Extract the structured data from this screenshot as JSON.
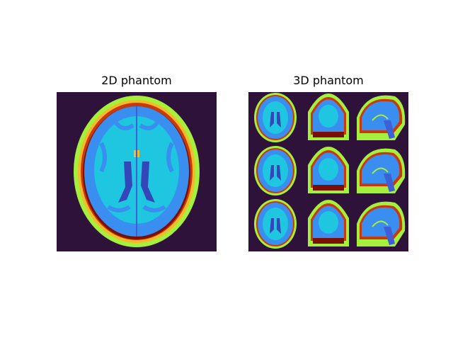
{
  "figure": {
    "panels": [
      {
        "title": "2D phantom",
        "content": "axial MRI brain phantom slice"
      },
      {
        "title": "3D phantom",
        "content": "3x3 grid of axial, coronal and sagittal slices"
      }
    ],
    "colors": {
      "background": "#2f123a",
      "scalp": "#a4f03c",
      "skull": "#f5b92a",
      "marrow": "#c83a0c",
      "dark_red": "#7a0f05",
      "csf": "#1ec6e0",
      "gray_matter": "#3a8ef0",
      "white_matter": "#3e5fd6",
      "ventricle": "#3447b8"
    }
  }
}
